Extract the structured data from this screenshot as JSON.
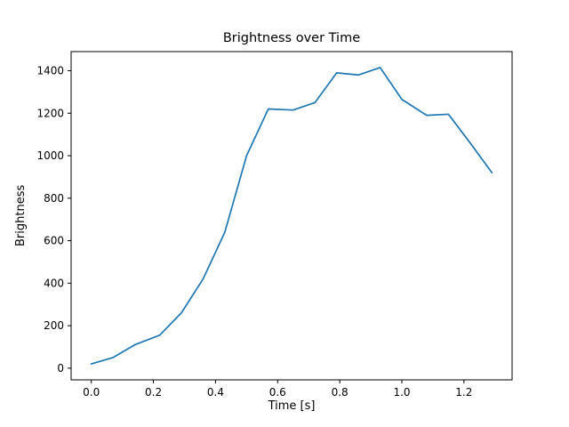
{
  "chart_data": {
    "type": "line",
    "title": "Brightness over Time",
    "xlabel": "Time [s]",
    "ylabel": "Brightness",
    "x": [
      0.0,
      0.07,
      0.14,
      0.22,
      0.29,
      0.36,
      0.43,
      0.5,
      0.57,
      0.65,
      0.72,
      0.79,
      0.86,
      0.93,
      1.0,
      1.08,
      1.15,
      1.22,
      1.29
    ],
    "y": [
      20,
      50,
      110,
      155,
      260,
      420,
      640,
      1000,
      1220,
      1215,
      1250,
      1390,
      1380,
      1415,
      1265,
      1190,
      1195,
      1060,
      920
    ],
    "line_color": "#1f77b4",
    "axis_color": "#000000",
    "xlim": [
      -0.065,
      1.355
    ],
    "ylim": [
      -55,
      1490
    ],
    "xticks": [
      0.0,
      0.2,
      0.4,
      0.6,
      0.8,
      1.0,
      1.2
    ],
    "xtick_labels": [
      "0.0",
      "0.2",
      "0.4",
      "0.6",
      "0.8",
      "1.0",
      "1.2"
    ],
    "yticks": [
      0,
      200,
      400,
      600,
      800,
      1000,
      1200,
      1400
    ],
    "ytick_labels": [
      "0",
      "200",
      "400",
      "600",
      "800",
      "1000",
      "1200",
      "1400"
    ],
    "grid": false,
    "legend": null
  }
}
